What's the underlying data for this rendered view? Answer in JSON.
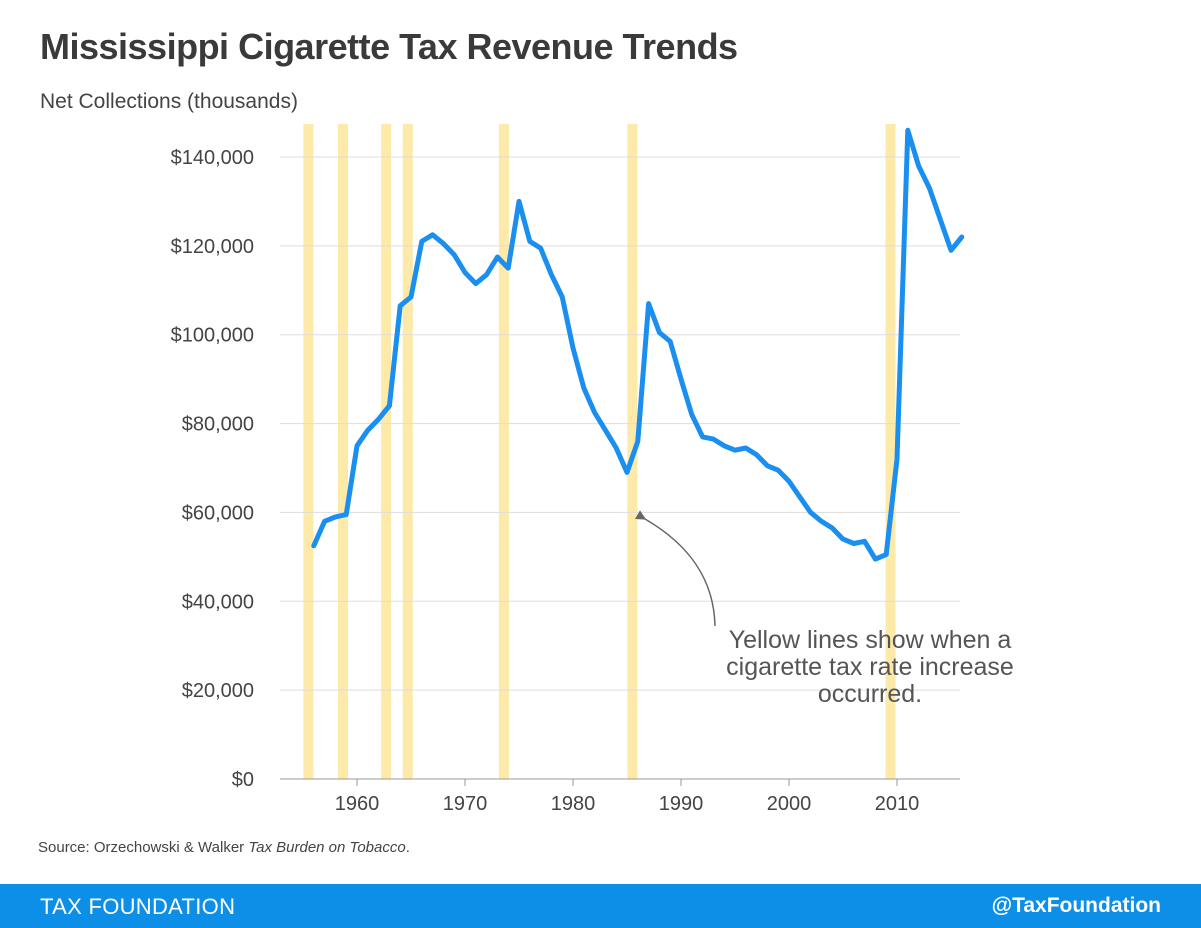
{
  "title": "Mississippi Cigarette Tax Revenue Trends",
  "subtitle": "Net Collections (thousands)",
  "source": {
    "prefix": "Source: Orzechowski & Walker ",
    "publication": "Tax Burden on Tobacco",
    "suffix": "."
  },
  "footer": {
    "brand": "TAX FOUNDATION",
    "handle": "@TaxFoundation",
    "color": "#0d8fe8"
  },
  "chart_data": {
    "type": "line",
    "title": "Mississippi Cigarette Tax Revenue Trends",
    "ylabel": "Net Collections (thousands)",
    "xlabel": "",
    "xlim": [
      1954,
      2017
    ],
    "ylim": [
      0,
      140000
    ],
    "grid": true,
    "y_ticks": [
      0,
      20000,
      40000,
      60000,
      80000,
      100000,
      120000,
      140000
    ],
    "y_tick_labels": [
      "$0",
      "$20,000",
      "$40,000",
      "$60,000",
      "$80,000",
      "$100,000",
      "$120,000",
      "$140,000"
    ],
    "x_ticks": [
      1960,
      1970,
      1980,
      1990,
      2000,
      2010
    ],
    "x_tick_labels": [
      "1960",
      "1970",
      "1980",
      "1990",
      "2000",
      "2010"
    ],
    "line_color": "#1a8ff0",
    "band_color": "#fde9a8",
    "tax_increase_years": [
      1955.5,
      1958.7,
      1962.7,
      1964.7,
      1973.6,
      1985.5,
      2009.4
    ],
    "series": [
      {
        "x": [
          1956,
          1957,
          1958,
          1959,
          1960,
          1961,
          1962,
          1963,
          1964,
          1965,
          1966,
          1967,
          1968,
          1969,
          1970,
          1971,
          1972,
          1973,
          1974,
          1975,
          1976,
          1977,
          1978,
          1979,
          1980,
          1981,
          1982,
          1983,
          1984,
          1985,
          1986,
          1987,
          1988,
          1989,
          1990,
          1991,
          1992,
          1993,
          1994,
          1995,
          1996,
          1997,
          1998,
          1999,
          2000,
          2001,
          2002,
          2003,
          2004,
          2005,
          2006,
          2007,
          2008,
          2009,
          2010,
          2011,
          2012,
          2013,
          2014,
          2015,
          2016
        ],
        "values": [
          52500,
          58000,
          59000,
          59500,
          75000,
          78500,
          81000,
          84000,
          106500,
          108500,
          121000,
          122500,
          120500,
          118000,
          114000,
          111500,
          113500,
          117500,
          115000,
          130000,
          121000,
          119500,
          113500,
          108500,
          97000,
          88000,
          82500,
          78500,
          74500,
          69000,
          76000,
          107000,
          100500,
          98500,
          90000,
          82000,
          77000,
          76500,
          75000,
          74000,
          74500,
          73000,
          70500,
          69500,
          67000,
          63500,
          60000,
          58000,
          56500,
          54000,
          53000,
          53500,
          49500,
          50500,
          72000,
          146000,
          138000,
          133000,
          126000,
          119000,
          122000
        ]
      }
    ],
    "annotation": {
      "lines": [
        "Yellow lines show when a",
        "cigarette tax rate increase",
        "occurred."
      ],
      "points_to_year": 1985.5,
      "points_to_value": 55000
    }
  }
}
